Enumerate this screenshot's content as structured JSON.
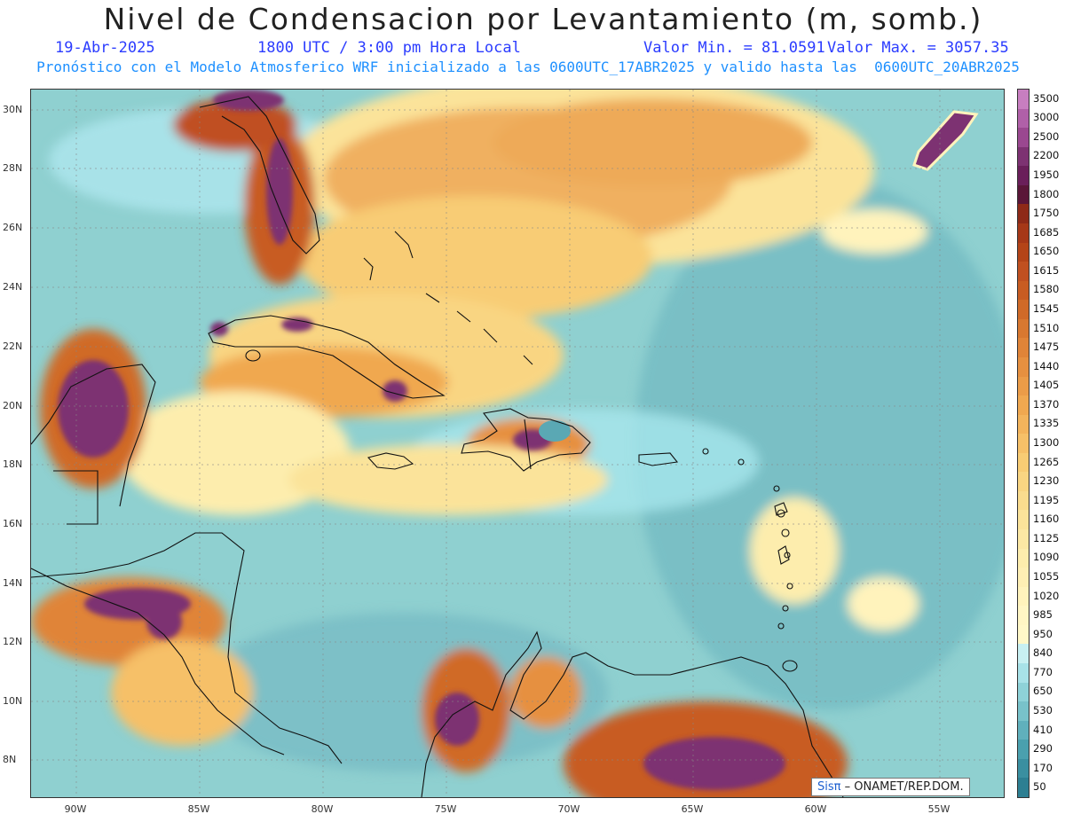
{
  "header": {
    "title": "Nivel de Condensacion por Levantamiento (m, somb.)",
    "date": "19-Abr-2025",
    "time": "1800 UTC / 3:00 pm Hora Local",
    "min_value": "Valor Min. = 81.0591",
    "max_value": "Valor Max. = 3057.35",
    "subtitle": "Pronóstico con el Modelo Atmosferico WRF inicializado a las 0600UTC_17ABR2025 y valido hasta las  0600UTC_20ABR2025"
  },
  "map": {
    "lat_labels": [
      "30N",
      "28N",
      "26N",
      "24N",
      "22N",
      "20N",
      "18N",
      "16N",
      "14N",
      "12N",
      "10N",
      "8N"
    ],
    "lon_labels": [
      "90W",
      "85W",
      "80W",
      "75W",
      "70W",
      "65W",
      "60W",
      "55W"
    ],
    "credit_sis": "Sisπ",
    "credit_rest": " – ONAMET/REP.DOM.",
    "colors": {
      "ocean_teal": "#8fd0d0",
      "ocean_dark": "#5aa8b4",
      "cyan_light": "#a8e6ec",
      "yellow": "#fde9a0",
      "orange": "#e8a040",
      "brown": "#b04a20",
      "purple": "#7a2a6e"
    }
  },
  "colorbar": {
    "labels": [
      "3500",
      "3000",
      "2500",
      "2200",
      "1950",
      "1800",
      "1750",
      "1685",
      "1650",
      "1615",
      "1580",
      "1545",
      "1510",
      "1475",
      "1440",
      "1405",
      "1370",
      "1335",
      "1300",
      "1265",
      "1230",
      "1195",
      "1160",
      "1125",
      "1090",
      "1055",
      "1020",
      "985",
      "950",
      "840",
      "770",
      "650",
      "530",
      "410",
      "290",
      "170",
      "50"
    ],
    "colors": [
      "#c77ec0",
      "#b060a8",
      "#9a4890",
      "#7d3272",
      "#6a1f5a",
      "#5a1638",
      "#8e2a18",
      "#a63818",
      "#b44418",
      "#c05020",
      "#c85c22",
      "#d06a28",
      "#d87830",
      "#e08438",
      "#e69040",
      "#eb9c48",
      "#f0a850",
      "#f3b45c",
      "#f6c068",
      "#f8cc74",
      "#f9d582",
      "#fadc8e",
      "#fbe39a",
      "#fce8a4",
      "#fdedad",
      "#feefb4",
      "#fff3bc",
      "#fff6c4",
      "#fff8c8",
      "#c8f0f2",
      "#a8e2e8",
      "#8ed2d8",
      "#78c2ca",
      "#60b0bc",
      "#4aa0ae",
      "#3a8fa0",
      "#2d7f92"
    ]
  }
}
